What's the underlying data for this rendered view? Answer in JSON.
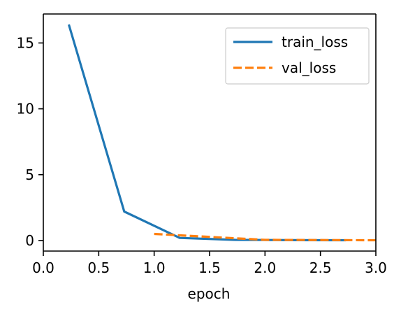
{
  "chart_data": {
    "type": "line",
    "xlabel": "epoch",
    "ylabel": "",
    "xlim": [
      0,
      3
    ],
    "ylim": [
      -0.8,
      17.2
    ],
    "xticks": [
      0,
      0.5,
      1,
      1.5,
      2,
      2.5,
      3
    ],
    "xtick_labels": [
      "0.0",
      "0.5",
      "1.0",
      "1.5",
      "2.0",
      "2.5",
      "3.0"
    ],
    "yticks": [
      0,
      5,
      10,
      15
    ],
    "ytick_labels": [
      "0",
      "5",
      "10",
      "15"
    ],
    "grid": false,
    "legend_position": "top-right",
    "series": [
      {
        "name": "train_loss",
        "color": "#1f77b4",
        "style": "solid",
        "x": [
          0.23,
          0.73,
          1.23,
          1.73,
          2.23,
          2.73
        ],
        "y": [
          16.4,
          2.2,
          0.2,
          0.05,
          0.03,
          0.02
        ]
      },
      {
        "name": "val_loss",
        "color": "#ff7f0e",
        "style": "dashed",
        "x": [
          1.0,
          2.0,
          3.0
        ],
        "y": [
          0.5,
          0.05,
          0.02
        ]
      }
    ]
  }
}
